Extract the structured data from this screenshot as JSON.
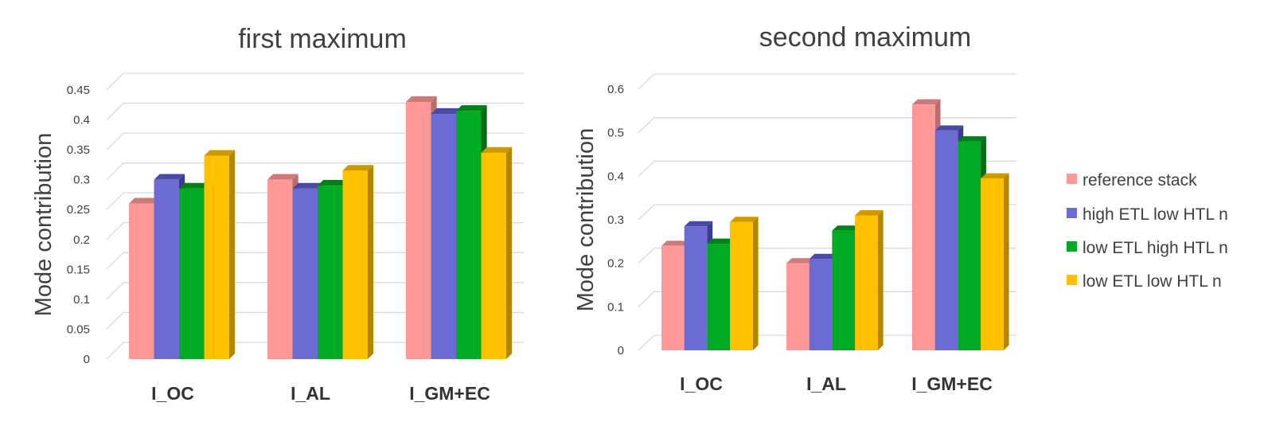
{
  "chart_data": [
    {
      "type": "bar",
      "title": "first maximum",
      "ylabel": "Mode contribution",
      "xlabel": "",
      "categories": [
        "I_OC",
        "I_AL",
        "I_GM+EC"
      ],
      "ylim": [
        0,
        0.45
      ],
      "yticks": [
        "0",
        "0.05",
        "0.1",
        "0.15",
        "0.2",
        "0.25",
        "0.3",
        "0.35",
        "0.4",
        "0.45"
      ],
      "series": [
        {
          "name": "reference stack",
          "values": [
            0.26,
            0.3,
            0.43
          ]
        },
        {
          "name": "high ETL low HTL n",
          "values": [
            0.3,
            0.285,
            0.41
          ]
        },
        {
          "name": "low ETL high HTL n",
          "values": [
            0.285,
            0.29,
            0.415
          ]
        },
        {
          "name": "low ETL low HTL n",
          "values": [
            0.34,
            0.315,
            0.345
          ]
        }
      ],
      "grid": true
    },
    {
      "type": "bar",
      "title": "second maximum",
      "ylabel": "Mode contribution",
      "xlabel": "",
      "categories": [
        "I_OC",
        "I_AL",
        "I_GM+EC"
      ],
      "ylim": [
        0,
        0.6
      ],
      "yticks": [
        "0",
        "0.1",
        "0.2",
        "0.3",
        "0.4",
        "0.5",
        "0.6"
      ],
      "series": [
        {
          "name": "reference stack",
          "values": [
            0.24,
            0.2,
            0.565
          ]
        },
        {
          "name": "high ETL low HTL n",
          "values": [
            0.285,
            0.21,
            0.505
          ]
        },
        {
          "name": "low ETL high HTL n",
          "values": [
            0.245,
            0.275,
            0.48
          ]
        },
        {
          "name": "low ETL low HTL n",
          "values": [
            0.295,
            0.31,
            0.395
          ]
        }
      ],
      "grid": true,
      "legend_position": "right"
    }
  ],
  "legend": [
    "reference stack",
    "high ETL low HTL n",
    "low ETL high HTL n",
    "low ETL low HTL n"
  ],
  "colors": {
    "reference stack": {
      "front": "#ff9999",
      "side": "#b86e6e",
      "top": "#cc7a7a"
    },
    "high ETL low HTL n": {
      "front": "#6b6bd1",
      "side": "#3c3c8f",
      "top": "#4a4aa6"
    },
    "low ETL high HTL n": {
      "front": "#00aa22",
      "side": "#006b15",
      "top": "#008018"
    },
    "low ETL low HTL n": {
      "front": "#ffc000",
      "side": "#b38600",
      "top": "#cc9900"
    }
  }
}
